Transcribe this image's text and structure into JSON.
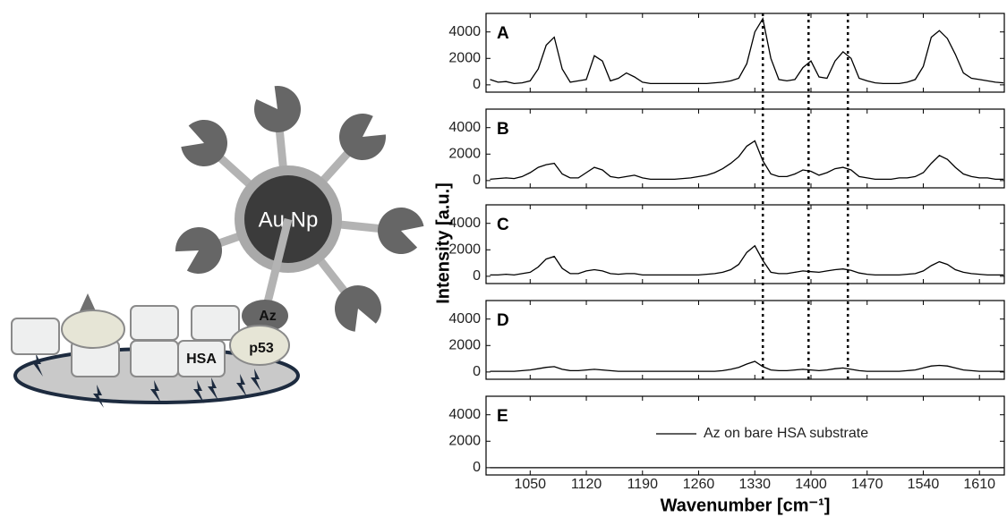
{
  "chart_data": {
    "type": "line",
    "xlabel": "Wavenumber [cm⁻¹]",
    "ylabel": "Intensity [a.u.]",
    "color": "#000000",
    "xlim": [
      995,
      1641
    ],
    "xticks": [
      1050,
      1120,
      1190,
      1260,
      1330,
      1400,
      1470,
      1540,
      1610
    ],
    "ylim": [
      -550,
      5400
    ],
    "yticks": [
      0,
      2000,
      4000
    ],
    "vlines": [
      1340,
      1397,
      1446
    ],
    "x": [
      1000,
      1010,
      1020,
      1030,
      1040,
      1050,
      1060,
      1070,
      1080,
      1090,
      1100,
      1110,
      1120,
      1130,
      1140,
      1150,
      1160,
      1170,
      1180,
      1190,
      1200,
      1210,
      1220,
      1230,
      1240,
      1250,
      1260,
      1270,
      1280,
      1290,
      1300,
      1310,
      1320,
      1330,
      1340,
      1350,
      1360,
      1370,
      1380,
      1390,
      1400,
      1410,
      1420,
      1430,
      1440,
      1450,
      1460,
      1470,
      1480,
      1490,
      1500,
      1510,
      1520,
      1530,
      1540,
      1550,
      1560,
      1570,
      1580,
      1590,
      1600,
      1610,
      1620,
      1630,
      1640
    ],
    "panels": [
      {
        "label": "A",
        "series": [
          {
            "values": [
              400,
              200,
              250,
              100,
              150,
              300,
              1200,
              3000,
              3600,
              1200,
              200,
              300,
              400,
              2200,
              1800,
              300,
              500,
              900,
              600,
              200,
              100,
              100,
              100,
              100,
              100,
              100,
              100,
              100,
              150,
              200,
              300,
              500,
              1600,
              4000,
              5000,
              2000,
              400,
              300,
              400,
              1300,
              1800,
              600,
              500,
              1800,
              2500,
              2000,
              500,
              300,
              150,
              100,
              100,
              100,
              200,
              400,
              1400,
              3600,
              4100,
              3500,
              2300,
              900,
              500,
              400,
              300,
              200,
              150
            ]
          }
        ]
      },
      {
        "label": "B",
        "series": [
          {
            "values": [
              100,
              150,
              200,
              150,
              300,
              600,
              1000,
              1200,
              1300,
              500,
              200,
              200,
              600,
              1000,
              800,
              300,
              200,
              300,
              400,
              200,
              100,
              100,
              100,
              100,
              150,
              200,
              300,
              400,
              600,
              900,
              1300,
              1800,
              2600,
              3000,
              1500,
              500,
              300,
              300,
              500,
              800,
              700,
              400,
              600,
              900,
              1000,
              800,
              300,
              200,
              100,
              100,
              100,
              200,
              200,
              300,
              600,
              1300,
              1900,
              1600,
              1000,
              500,
              300,
              200,
              200,
              100,
              100
            ]
          }
        ]
      },
      {
        "label": "C",
        "series": [
          {
            "values": [
              100,
              100,
              150,
              100,
              200,
              300,
              700,
              1300,
              1500,
              600,
              200,
              200,
              400,
              500,
              400,
              200,
              150,
              200,
              200,
              100,
              100,
              100,
              100,
              100,
              100,
              100,
              100,
              150,
              200,
              300,
              500,
              900,
              1800,
              2300,
              1200,
              300,
              200,
              200,
              300,
              400,
              350,
              300,
              400,
              500,
              550,
              450,
              250,
              150,
              100,
              100,
              100,
              100,
              150,
              200,
              400,
              800,
              1100,
              900,
              500,
              300,
              200,
              150,
              100,
              100,
              100
            ]
          }
        ]
      },
      {
        "label": "D",
        "series": [
          {
            "values": [
              50,
              50,
              50,
              50,
              100,
              150,
              250,
              350,
              400,
              200,
              100,
              100,
              150,
              200,
              150,
              100,
              50,
              50,
              50,
              50,
              50,
              50,
              50,
              50,
              50,
              50,
              50,
              50,
              50,
              100,
              200,
              350,
              600,
              800,
              400,
              150,
              100,
              100,
              150,
              200,
              150,
              100,
              150,
              250,
              300,
              200,
              100,
              50,
              50,
              50,
              50,
              50,
              100,
              150,
              300,
              450,
              500,
              450,
              300,
              150,
              100,
              50,
              50,
              50,
              50
            ]
          }
        ]
      },
      {
        "label": "E",
        "series": [
          {
            "name": "Az on bare HSA substrate",
            "values": [
              0,
              0,
              0,
              0,
              0,
              0,
              0,
              0,
              0,
              0,
              0,
              0,
              0,
              0,
              0,
              0,
              0,
              0,
              0,
              0,
              0,
              0,
              0,
              0,
              0,
              0,
              0,
              0,
              0,
              0,
              0,
              0,
              0,
              0,
              0,
              0,
              0,
              0,
              0,
              0,
              0,
              0,
              0,
              0,
              0,
              0,
              0,
              0,
              0,
              0,
              0,
              0,
              0,
              0,
              0,
              0,
              0,
              0,
              0,
              0,
              0,
              0,
              0,
              0,
              0
            ]
          }
        ]
      }
    ]
  },
  "diagram": {
    "particle_label": "Au Np",
    "labels": [
      "Az",
      "p53",
      "HSA"
    ]
  }
}
